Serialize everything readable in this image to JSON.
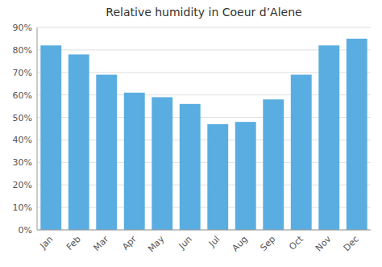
{
  "chart_data": {
    "type": "bar",
    "title": "Relative humidity in Coeur d’Alene",
    "categories": [
      "Jan",
      "Feb",
      "Mar",
      "Apr",
      "May",
      "Jun",
      "Jul",
      "Aug",
      "Sep",
      "Oct",
      "Nov",
      "Dec"
    ],
    "values": [
      82,
      78,
      69,
      61,
      59,
      56,
      47,
      48,
      58,
      69,
      82,
      85
    ],
    "color": "#5aade0",
    "ylim": [
      0,
      90
    ],
    "yticks": [
      {
        "value": 0,
        "label": "0%"
      },
      {
        "value": 10,
        "label": "10%"
      },
      {
        "value": 20,
        "label": "20%"
      },
      {
        "value": 30,
        "label": "30%"
      },
      {
        "value": 40,
        "label": "40%"
      },
      {
        "value": 50,
        "label": "50%"
      },
      {
        "value": 60,
        "label": "60%"
      },
      {
        "value": 70,
        "label": "70%"
      },
      {
        "value": 80,
        "label": "80%"
      },
      {
        "value": 90,
        "label": "90%"
      }
    ],
    "grid": true
  }
}
